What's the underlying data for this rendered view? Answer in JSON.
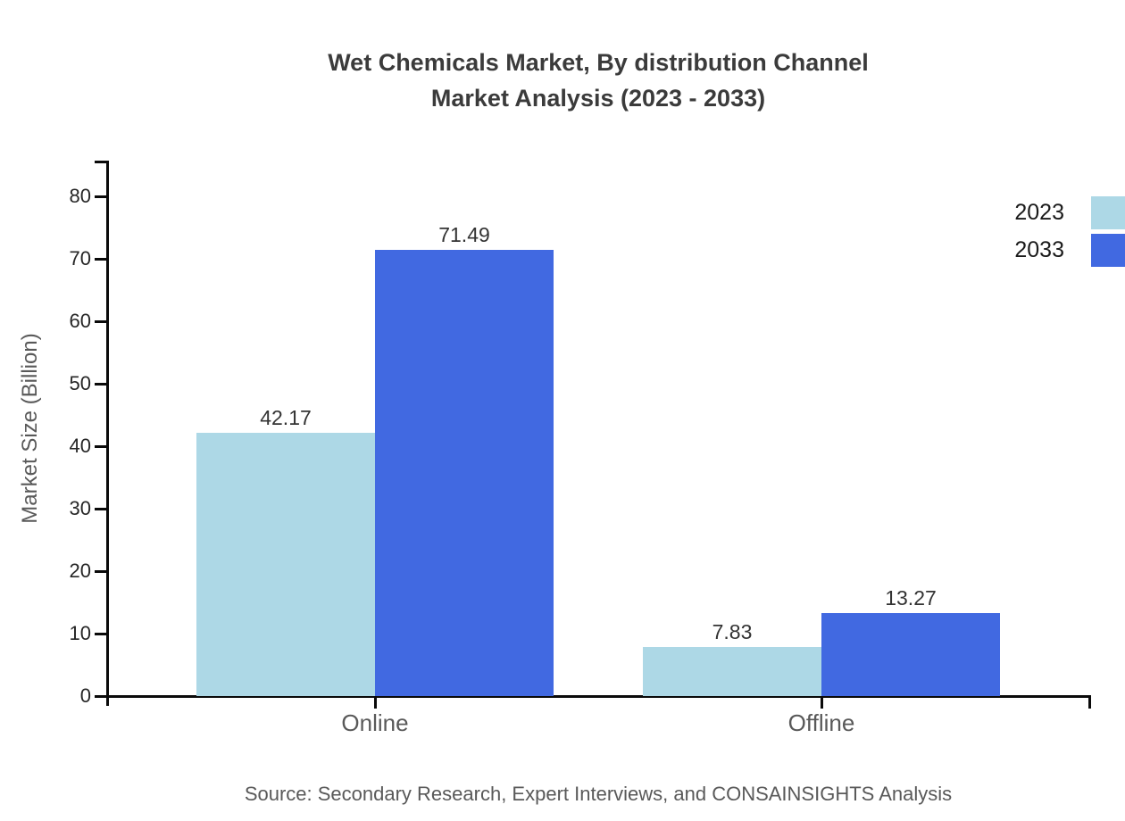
{
  "title": {
    "line1": "Wet Chemicals Market, By distribution Channel",
    "line2": "Market Analysis (2023 - 2033)"
  },
  "chart_data": {
    "type": "bar",
    "categories": [
      "Online",
      "Offline"
    ],
    "series": [
      {
        "name": "2023",
        "color": "#ADD8E6",
        "values": [
          42.17,
          7.83
        ]
      },
      {
        "name": "2033",
        "color": "#4169E1",
        "values": [
          71.49,
          13.27
        ]
      }
    ],
    "title": "Wet Chemicals Market, By distribution Channel Market Analysis (2023 - 2033)",
    "xlabel": "",
    "ylabel": "Market Size (Billion)",
    "ylim": [
      0,
      85
    ],
    "yticks": [
      0,
      10,
      20,
      30,
      40,
      50,
      60,
      70,
      80
    ],
    "grid": false,
    "legend_position": "right",
    "value_labels_shown": true
  },
  "source": "Source: Secondary Research, Expert Interviews, and CONSAINSIGHTS Analysis",
  "colors": {
    "series_2023": "#ADD8E6",
    "series_2033": "#4169E1",
    "axis": "#0a0a0a",
    "title_text": "#3b3b3b",
    "tick_label_text": "#262626",
    "value_label_text": "#333333",
    "muted_text": "#595959",
    "legend_text": "#1a1a1a",
    "background": "#ffffff"
  }
}
